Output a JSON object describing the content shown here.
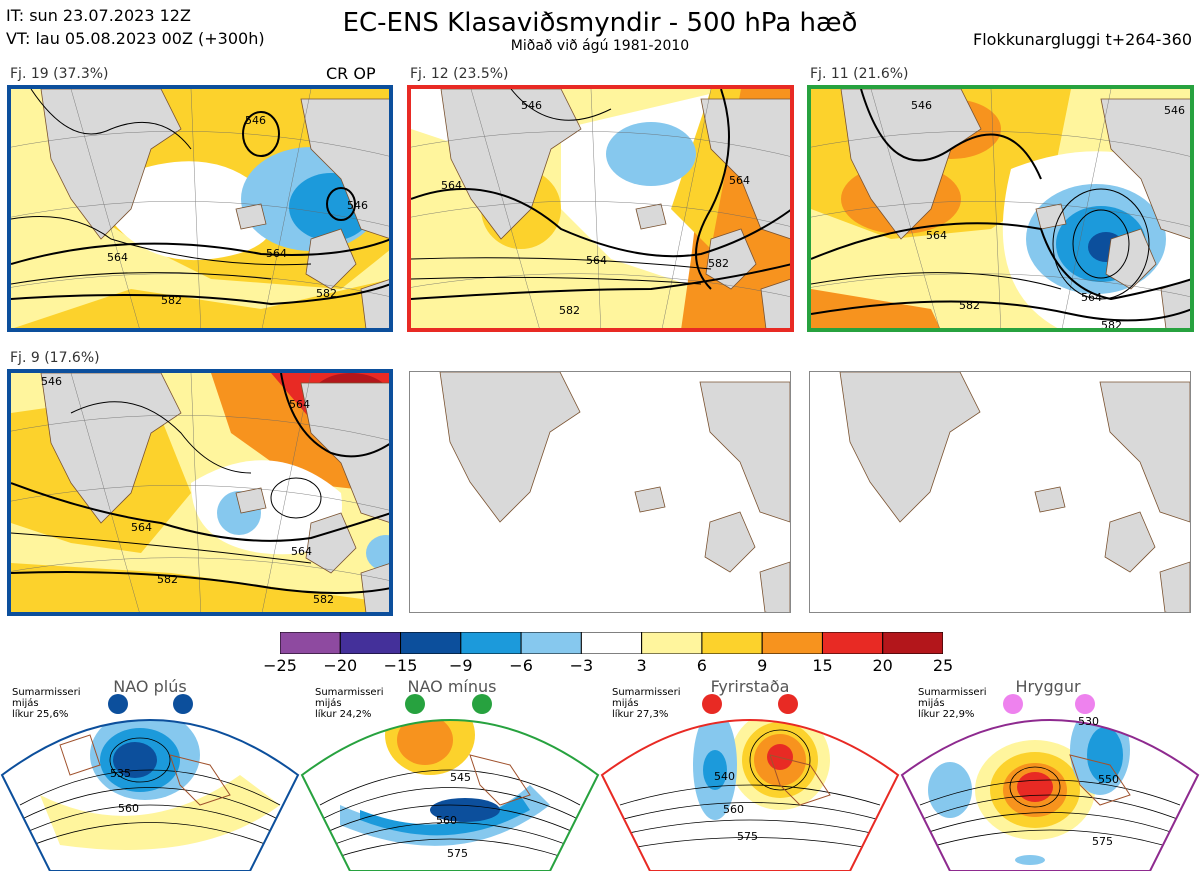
{
  "header": {
    "it_line": "IT: sun 23.07.2023 12Z",
    "vt_line": "VT: lau 05.08.2023 00Z  (+300h)",
    "title": "EC-ENS Klasaviðsmyndir - 500 hPa hæð",
    "subtitle": "Miðað við ágú 1981-2010",
    "window": "Flokkunargluggi t+264-360"
  },
  "clusters": [
    {
      "label": "Fj. 19 (37.3%)",
      "tag": "CR OP",
      "frame_color": "#0c4f9c",
      "contours": [
        "546",
        "546",
        "564",
        "564",
        "582",
        "582"
      ]
    },
    {
      "label": "Fj. 12 (23.5%)",
      "tag": "",
      "frame_color": "#e82a24",
      "contours": [
        "546",
        "564",
        "564",
        "582",
        "582",
        "564"
      ]
    },
    {
      "label": "Fj. 11 (21.6%)",
      "tag": "",
      "frame_color": "#27a23f",
      "contours": [
        "546",
        "564",
        "564",
        "582",
        "582",
        "546"
      ]
    },
    {
      "label": "Fj. 9 (17.6%)",
      "tag": "",
      "frame_color": "#0c4f9c",
      "contours": [
        "546",
        "564",
        "564",
        "582",
        "582",
        "564"
      ]
    }
  ],
  "colorbar": {
    "colors": [
      "#8e4aa0",
      "#44309a",
      "#0c4f9c",
      "#1c9adb",
      "#86c8ee",
      "#ffffff",
      "#fff59d",
      "#fcd22c",
      "#f7931e",
      "#e82a24",
      "#b3161b"
    ],
    "labels": [
      "−25",
      "−20",
      "−15",
      "−9",
      "−6",
      "−3",
      "3",
      "6",
      "9",
      "15",
      "20",
      "25"
    ]
  },
  "regimes": [
    {
      "name": "NAO plús",
      "note": [
        "Sumarmisseri",
        "mijás",
        "líkur 25,6%"
      ],
      "color": "#0c4f9c",
      "contours": [
        "535",
        "560"
      ]
    },
    {
      "name": "NAO mínus",
      "note": [
        "Sumarmisseri",
        "mijás",
        "líkur 24,2%"
      ],
      "color": "#27a23f",
      "contours": [
        "545",
        "560",
        "575"
      ]
    },
    {
      "name": "Fyrirstaða",
      "note": [
        "Sumarmisseri",
        "mijás",
        "líkur 27,3%"
      ],
      "color": "#e82a24",
      "contours": [
        "540",
        "560",
        "575"
      ]
    },
    {
      "name": "Hryggur",
      "note": [
        "Sumarmisseri",
        "mijás",
        "líkur 22,9%"
      ],
      "color": "#8e2a8f",
      "dot_color": "#ee82ee",
      "contours": [
        "530",
        "550",
        "575"
      ]
    }
  ]
}
